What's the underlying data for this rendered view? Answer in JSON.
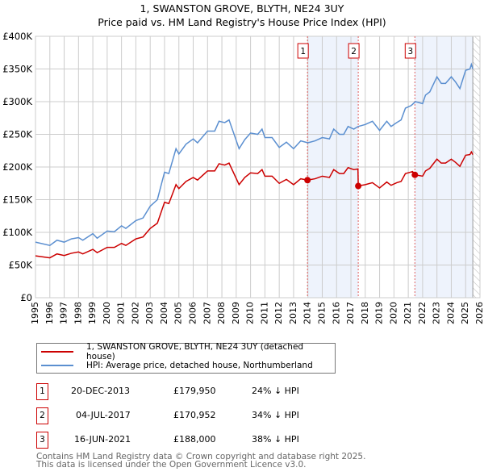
{
  "chart_data": {
    "type": "line",
    "title": "1, SWANSTON GROVE, BLYTH, NE24 3UY",
    "subtitle": "Price paid vs. HM Land Registry's House Price Index (HPI)",
    "xlim": [
      1995,
      2026
    ],
    "ylim": [
      0,
      400000
    ],
    "x_ticks": [
      "1995",
      "1996",
      "1997",
      "1998",
      "1999",
      "2000",
      "2001",
      "2002",
      "2003",
      "2004",
      "2005",
      "2006",
      "2007",
      "2008",
      "2009",
      "2010",
      "2011",
      "2012",
      "2013",
      "2014",
      "2015",
      "2016",
      "2017",
      "2018",
      "2019",
      "2020",
      "2021",
      "2022",
      "2023",
      "2024",
      "2025",
      "2026"
    ],
    "y_ticks": [
      {
        "v": 0,
        "label": "£0"
      },
      {
        "v": 50000,
        "label": "£50K"
      },
      {
        "v": 100000,
        "label": "£100K"
      },
      {
        "v": 150000,
        "label": "£150K"
      },
      {
        "v": 200000,
        "label": "£200K"
      },
      {
        "v": 250000,
        "label": "£250K"
      },
      {
        "v": 300000,
        "label": "£300K"
      },
      {
        "v": 350000,
        "label": "£350K"
      },
      {
        "v": 400000,
        "label": "£400K"
      }
    ],
    "grid": true,
    "series": [
      {
        "name": "1, SWANSTON GROVE, BLYTH, NE24 3UY (detached house)",
        "color": "#cc0000",
        "points": [
          [
            1995,
            64
          ],
          [
            1996,
            61
          ],
          [
            1996.5,
            67
          ],
          [
            1997,
            64.5
          ],
          [
            1997.5,
            68
          ],
          [
            1998,
            70
          ],
          [
            1998.3,
            67
          ],
          [
            1999,
            74
          ],
          [
            1999.3,
            69
          ],
          [
            2000,
            77
          ],
          [
            2000.5,
            77
          ],
          [
            2001,
            83
          ],
          [
            2001.3,
            80
          ],
          [
            2002,
            90
          ],
          [
            2002.5,
            93
          ],
          [
            2003,
            106
          ],
          [
            2003.5,
            114
          ],
          [
            2004,
            146
          ],
          [
            2004.3,
            144
          ],
          [
            2004.8,
            173
          ],
          [
            2005,
            167
          ],
          [
            2005.5,
            178
          ],
          [
            2006,
            184
          ],
          [
            2006.3,
            180
          ],
          [
            2007,
            194
          ],
          [
            2007.5,
            194
          ],
          [
            2007.8,
            205
          ],
          [
            2008.2,
            203
          ],
          [
            2008.5,
            206
          ],
          [
            2009.2,
            173
          ],
          [
            2009.6,
            184
          ],
          [
            2010,
            191
          ],
          [
            2010.5,
            190
          ],
          [
            2010.8,
            196
          ],
          [
            2011,
            186
          ],
          [
            2011.5,
            186
          ],
          [
            2012,
            175
          ],
          [
            2012.5,
            181
          ],
          [
            2013,
            173
          ],
          [
            2013.5,
            182
          ],
          [
            2013.97,
            179.95
          ],
          [
            2014.5,
            182
          ],
          [
            2015,
            186
          ],
          [
            2015.5,
            184
          ],
          [
            2015.8,
            196
          ],
          [
            2016.2,
            190
          ],
          [
            2016.5,
            190
          ],
          [
            2016.8,
            199
          ],
          [
            2017.2,
            196
          ],
          [
            2017.49,
            197
          ],
          [
            2017.51,
            170.95
          ],
          [
            2018,
            173
          ],
          [
            2018.5,
            176
          ],
          [
            2019,
            168
          ],
          [
            2019.5,
            177
          ],
          [
            2019.8,
            172
          ],
          [
            2020.2,
            176
          ],
          [
            2020.5,
            178
          ],
          [
            2020.8,
            190
          ],
          [
            2021.3,
            193
          ],
          [
            2021.46,
            188
          ],
          [
            2022,
            186
          ],
          [
            2022.2,
            194
          ],
          [
            2022.5,
            198
          ],
          [
            2023,
            212
          ],
          [
            2023.3,
            206
          ],
          [
            2023.6,
            206
          ],
          [
            2024,
            212
          ],
          [
            2024.3,
            207
          ],
          [
            2024.6,
            201
          ],
          [
            2025,
            218
          ],
          [
            2025.3,
            219
          ],
          [
            2025.4,
            223
          ],
          [
            2025.5,
            219
          ]
        ]
      },
      {
        "name": "HPI: Average price, detached house, Northumberland",
        "color": "#5b8fd0",
        "points": [
          [
            1995,
            85
          ],
          [
            1996,
            80
          ],
          [
            1996.5,
            88
          ],
          [
            1997,
            85
          ],
          [
            1997.5,
            90
          ],
          [
            1998,
            92
          ],
          [
            1998.3,
            88
          ],
          [
            1999,
            98
          ],
          [
            1999.3,
            91
          ],
          [
            2000,
            102
          ],
          [
            2000.5,
            101
          ],
          [
            2001,
            110
          ],
          [
            2001.3,
            106
          ],
          [
            2002,
            118
          ],
          [
            2002.5,
            122
          ],
          [
            2003,
            140
          ],
          [
            2003.5,
            150
          ],
          [
            2004,
            192
          ],
          [
            2004.3,
            190
          ],
          [
            2004.8,
            228
          ],
          [
            2005,
            220
          ],
          [
            2005.5,
            235
          ],
          [
            2006,
            243
          ],
          [
            2006.3,
            237
          ],
          [
            2007,
            255
          ],
          [
            2007.5,
            255
          ],
          [
            2007.8,
            270
          ],
          [
            2008.2,
            268
          ],
          [
            2008.5,
            272
          ],
          [
            2009.2,
            228
          ],
          [
            2009.6,
            242
          ],
          [
            2010,
            252
          ],
          [
            2010.5,
            250
          ],
          [
            2010.8,
            258
          ],
          [
            2011,
            245
          ],
          [
            2011.5,
            245
          ],
          [
            2012,
            230
          ],
          [
            2012.5,
            238
          ],
          [
            2013,
            228
          ],
          [
            2013.5,
            240
          ],
          [
            2014,
            237
          ],
          [
            2014.5,
            240
          ],
          [
            2015,
            245
          ],
          [
            2015.5,
            243
          ],
          [
            2015.8,
            258
          ],
          [
            2016.2,
            250
          ],
          [
            2016.5,
            250
          ],
          [
            2016.8,
            262
          ],
          [
            2017.2,
            258
          ],
          [
            2017.5,
            262
          ],
          [
            2018,
            265
          ],
          [
            2018.5,
            270
          ],
          [
            2019,
            256
          ],
          [
            2019.5,
            270
          ],
          [
            2019.8,
            262
          ],
          [
            2020.2,
            268
          ],
          [
            2020.5,
            272
          ],
          [
            2020.8,
            290
          ],
          [
            2021.2,
            294
          ],
          [
            2021.5,
            300
          ],
          [
            2022,
            297
          ],
          [
            2022.2,
            310
          ],
          [
            2022.5,
            315
          ],
          [
            2023,
            338
          ],
          [
            2023.3,
            328
          ],
          [
            2023.6,
            328
          ],
          [
            2024,
            338
          ],
          [
            2024.3,
            330
          ],
          [
            2024.6,
            320
          ],
          [
            2025,
            348
          ],
          [
            2025.3,
            350
          ],
          [
            2025.4,
            357
          ],
          [
            2025.5,
            350
          ]
        ]
      }
    ],
    "sales": [
      {
        "label": "1",
        "x": 2013.97,
        "y": 179.95
      },
      {
        "label": "2",
        "x": 2017.51,
        "y": 170.95
      },
      {
        "label": "3",
        "x": 2021.46,
        "y": 188
      }
    ],
    "shaded": [
      [
        2013.97,
        2017.51
      ],
      [
        2021.46,
        2025.5
      ]
    ],
    "hatched_from": 2025.5,
    "legend_placement": "below"
  },
  "legend": {
    "items": [
      {
        "label": "1, SWANSTON GROVE, BLYTH, NE24 3UY (detached house)",
        "color": "#cc0000"
      },
      {
        "label": "HPI: Average price, detached house, Northumberland",
        "color": "#5b8fd0"
      }
    ]
  },
  "table": [
    {
      "num": "1",
      "date": "20-DEC-2013",
      "price": "£179,950",
      "hpi": "24% ↓ HPI"
    },
    {
      "num": "2",
      "date": "04-JUL-2017",
      "price": "£170,952",
      "hpi": "34% ↓ HPI"
    },
    {
      "num": "3",
      "date": "16-JUN-2021",
      "price": "£188,000",
      "hpi": "38% ↓ HPI"
    }
  ],
  "footer": {
    "line1": "Contains HM Land Registry data © Crown copyright and database right 2025.",
    "line2": "This data is licensed under the Open Government Licence v3.0."
  }
}
